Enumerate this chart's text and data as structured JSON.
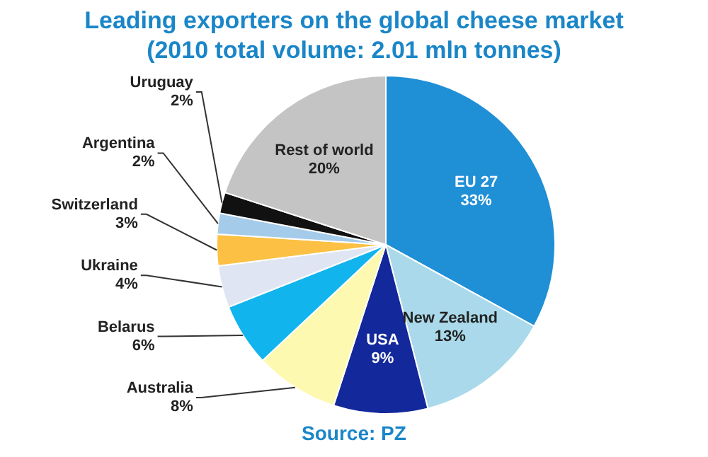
{
  "chart_data": {
    "type": "pie",
    "title": "Leading exporters on the global cheese market (2010 total volume: 2.01 mln tonnes)",
    "categories": [
      "EU 27",
      "New Zealand",
      "USA",
      "Australia",
      "Belarus",
      "Ukraine",
      "Switzerland",
      "Argentina",
      "Uruguay",
      "Rest of world"
    ],
    "values": [
      33,
      13,
      9,
      8,
      6,
      4,
      3,
      2,
      2,
      20
    ],
    "value_labels": [
      "33%",
      "13%",
      "9%",
      "8%",
      "6%",
      "4%",
      "3%",
      "2%",
      "2%",
      "20%"
    ],
    "colors": [
      "#1f8fd6",
      "#a9d9ea",
      "#13289a",
      "#fdf9b0",
      "#12b4ee",
      "#dfe5f2",
      "#fcc044",
      "#a5cbea",
      "#111111",
      "#c4c4c4"
    ],
    "annotations": [
      "Source: PZ"
    ],
    "legend": false
  }
}
